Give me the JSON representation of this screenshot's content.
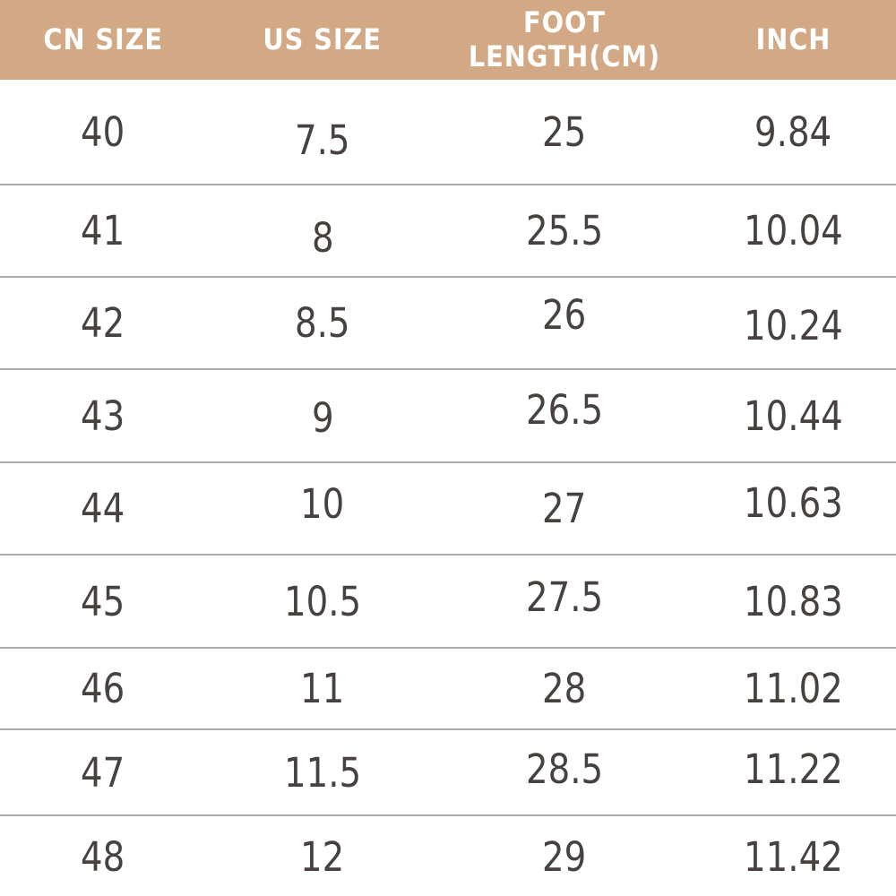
{
  "chart_data": {
    "type": "table",
    "columns": [
      "CN SIZE",
      "US SIZE",
      "FOOT\nLENGTH(CM)",
      "INCH"
    ],
    "rows": [
      [
        "40",
        "7.5",
        "25",
        "9.84"
      ],
      [
        "41",
        "8",
        "25.5",
        "10.04"
      ],
      [
        "42",
        "8.5",
        "26",
        "10.24"
      ],
      [
        "43",
        "9",
        "26.5",
        "10.44"
      ],
      [
        "44",
        "10",
        "27",
        "10.63"
      ],
      [
        "45",
        "10.5",
        "27.5",
        "10.83"
      ],
      [
        "46",
        "11",
        "28",
        "11.02"
      ],
      [
        "47",
        "11.5",
        "28.5",
        "11.22"
      ],
      [
        "48",
        "12",
        "29",
        "11.42"
      ]
    ],
    "legend_position": "none",
    "grid": "horizontal-dividers"
  },
  "colors": {
    "header_background": "#D2A885",
    "header_text": "#FFFFFF",
    "body_text": "#474140",
    "row_background": "#FFFFFF",
    "divider": "#ABABAB"
  }
}
